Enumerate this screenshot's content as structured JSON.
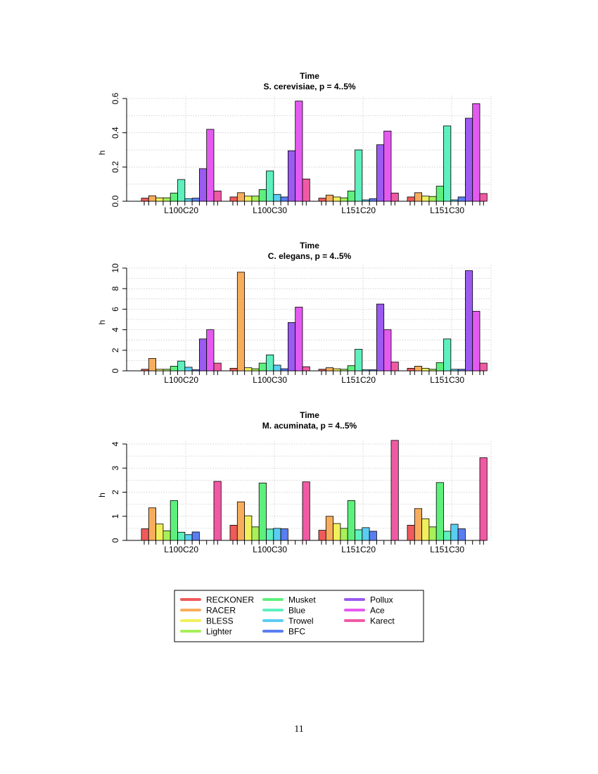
{
  "tools": [
    "RECKONER",
    "RACER",
    "BLESS",
    "Lighter",
    "Musket",
    "Blue",
    "Trowel",
    "BFC",
    "Pollux",
    "Ace",
    "Karect"
  ],
  "colors": {
    "RECKONER": "#f05a5a",
    "RACER": "#f8ad5c",
    "BLESS": "#f1f05c",
    "Lighter": "#a7f05a",
    "Musket": "#5ef07c",
    "Blue": "#5ef0bd",
    "Trowel": "#5bcdf2",
    "BFC": "#5a7df0",
    "Pollux": "#9b5af0",
    "Ace": "#e45af0",
    "Karect": "#f05aa4"
  },
  "page_number": "11",
  "chart_data": [
    {
      "type": "bar",
      "title": "Time",
      "subtitle": "S. cerevisiae, p = 4..5%",
      "ylabel": "h",
      "xlabel": "",
      "ylim": [
        0,
        0.6
      ],
      "yticks": [
        0.0,
        0.2,
        0.4,
        0.6
      ],
      "ytick_labels": [
        "0.0",
        "0.2",
        "0.4",
        "0.6"
      ],
      "grid": true,
      "categories": [
        "L100C20",
        "L100C30",
        "L151C20",
        "L151C30"
      ],
      "series": [
        {
          "name": "RECKONER",
          "values": [
            0.018,
            0.025,
            0.018,
            0.025
          ]
        },
        {
          "name": "RACER",
          "values": [
            0.032,
            0.05,
            0.036,
            0.05
          ]
        },
        {
          "name": "BLESS",
          "values": [
            0.02,
            0.03,
            0.025,
            0.03
          ]
        },
        {
          "name": "Lighter",
          "values": [
            0.02,
            0.03,
            0.02,
            0.028
          ]
        },
        {
          "name": "Musket",
          "values": [
            0.048,
            0.068,
            0.06,
            0.088
          ]
        },
        {
          "name": "Blue",
          "values": [
            0.127,
            0.177,
            0.3,
            0.44
          ]
        },
        {
          "name": "Trowel",
          "values": [
            0.015,
            0.04,
            0.008,
            0.008
          ]
        },
        {
          "name": "BFC",
          "values": [
            0.018,
            0.025,
            0.015,
            0.025
          ]
        },
        {
          "name": "Pollux",
          "values": [
            0.19,
            0.295,
            0.33,
            0.485
          ]
        },
        {
          "name": "Ace",
          "values": [
            0.42,
            0.585,
            0.41,
            0.57
          ]
        },
        {
          "name": "Karect",
          "values": [
            0.06,
            0.13,
            0.048,
            0.045
          ]
        }
      ]
    },
    {
      "type": "bar",
      "title": "Time",
      "subtitle": "C. elegans, p = 4..5%",
      "ylabel": "h",
      "xlabel": "",
      "ylim": [
        0,
        10
      ],
      "yticks": [
        0,
        2,
        4,
        6,
        8,
        10
      ],
      "ytick_labels": [
        "0",
        "2",
        "4",
        "6",
        "8",
        "10"
      ],
      "grid": true,
      "categories": [
        "L100C20",
        "L100C30",
        "L151C20",
        "L151C30"
      ],
      "series": [
        {
          "name": "RECKONER",
          "values": [
            0.15,
            0.25,
            0.15,
            0.25
          ]
        },
        {
          "name": "RACER",
          "values": [
            1.2,
            9.6,
            0.3,
            0.45
          ]
        },
        {
          "name": "BLESS",
          "values": [
            0.15,
            0.3,
            0.2,
            0.25
          ]
        },
        {
          "name": "Lighter",
          "values": [
            0.15,
            0.2,
            0.15,
            0.15
          ]
        },
        {
          "name": "Musket",
          "values": [
            0.45,
            0.75,
            0.5,
            0.8
          ]
        },
        {
          "name": "Blue",
          "values": [
            0.95,
            1.55,
            2.1,
            3.1
          ]
        },
        {
          "name": "Trowel",
          "values": [
            0.35,
            0.55,
            0.1,
            0.15
          ]
        },
        {
          "name": "BFC",
          "values": [
            0.1,
            0.2,
            0.1,
            0.15
          ]
        },
        {
          "name": "Pollux",
          "values": [
            3.1,
            4.7,
            6.5,
            9.75
          ]
        },
        {
          "name": "Ace",
          "values": [
            4.0,
            6.2,
            4.0,
            5.8
          ]
        },
        {
          "name": "Karect",
          "values": [
            0.75,
            0.4,
            0.85,
            0.75
          ]
        }
      ]
    },
    {
      "type": "bar",
      "title": "Time",
      "subtitle": "M. acuminata, p = 4..5%",
      "ylabel": "h",
      "xlabel": "",
      "ylim": [
        0,
        4
      ],
      "yticks": [
        0,
        1,
        2,
        3,
        4
      ],
      "ytick_labels": [
        "0",
        "1",
        "2",
        "3",
        "4"
      ],
      "grid": true,
      "categories": [
        "L100C20",
        "L100C30",
        "L151C20",
        "L151C30"
      ],
      "series": [
        {
          "name": "RECKONER",
          "values": [
            0.48,
            0.63,
            0.42,
            0.63
          ]
        },
        {
          "name": "RACER",
          "values": [
            1.35,
            1.6,
            1.0,
            1.32
          ]
        },
        {
          "name": "BLESS",
          "values": [
            0.68,
            1.02,
            0.7,
            0.9
          ]
        },
        {
          "name": "Lighter",
          "values": [
            0.4,
            0.56,
            0.5,
            0.56
          ]
        },
        {
          "name": "Musket",
          "values": [
            1.65,
            2.38,
            1.65,
            2.4
          ]
        },
        {
          "name": "Blue",
          "values": [
            0.34,
            0.47,
            0.44,
            0.38
          ]
        },
        {
          "name": "Trowel",
          "values": [
            0.24,
            0.5,
            0.53,
            0.67
          ]
        },
        {
          "name": "BFC",
          "values": [
            0.35,
            0.48,
            0.38,
            0.48
          ]
        },
        {
          "name": "Pollux",
          "values": [
            0,
            0,
            0,
            0
          ]
        },
        {
          "name": "Ace",
          "values": [
            0,
            0,
            0,
            0
          ]
        },
        {
          "name": "Karect",
          "values": [
            2.45,
            2.43,
            4.15,
            3.43
          ]
        }
      ]
    }
  ]
}
